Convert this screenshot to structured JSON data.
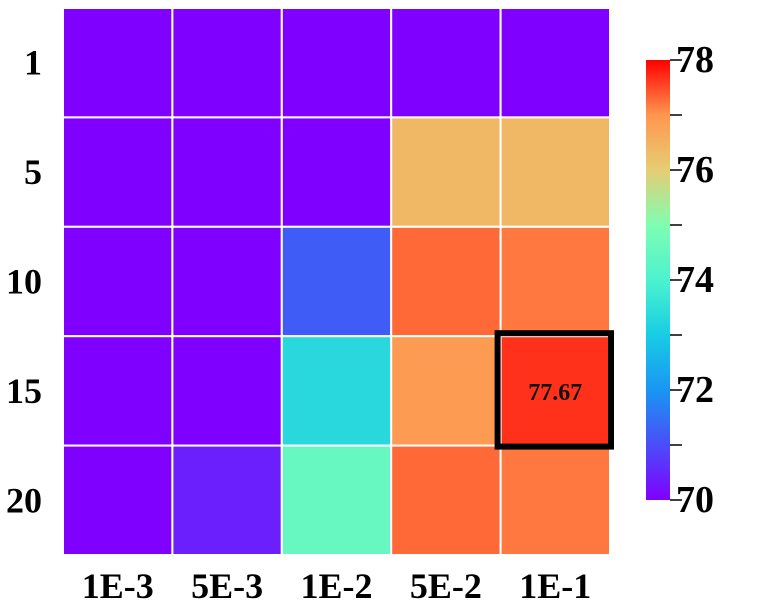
{
  "chart_data": {
    "type": "heatmap",
    "title": "",
    "xlabel": "",
    "ylabel": "",
    "x_categories": [
      "1E-3",
      "5E-3",
      "1E-2",
      "5E-2",
      "1E-1"
    ],
    "y_categories": [
      "1",
      "5",
      "10",
      "15",
      "20"
    ],
    "values": [
      [
        70.0,
        70.0,
        70.0,
        70.0,
        70.0
      ],
      [
        70.0,
        70.0,
        70.0,
        76.4,
        76.4
      ],
      [
        70.0,
        70.0,
        71.2,
        77.3,
        77.2
      ],
      [
        70.0,
        70.0,
        73.3,
        76.9,
        77.67
      ],
      [
        70.0,
        70.4,
        74.5,
        77.3,
        77.2
      ]
    ],
    "highlight": {
      "row": 3,
      "col": 4,
      "label": "77.67"
    },
    "colorbar": {
      "min": 70,
      "max": 78,
      "ticks": [
        "70",
        "72",
        "74",
        "76",
        "78"
      ],
      "colormap": "rainbow"
    }
  }
}
